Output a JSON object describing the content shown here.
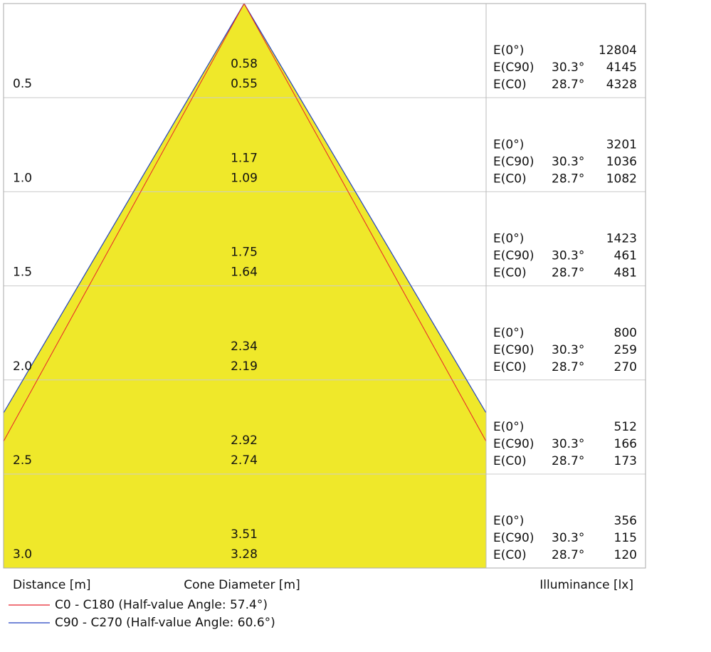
{
  "rows": [
    {
      "distance": "0.5",
      "diameters": [
        "0.58",
        "0.55"
      ],
      "illuminance": [
        {
          "label": "E(0°)",
          "value": "12804"
        },
        {
          "label": "E(C90)",
          "angle": "30.3°",
          "value": "4145"
        },
        {
          "label": "E(C0)",
          "angle": "28.7°",
          "value": "4328"
        }
      ]
    },
    {
      "distance": "1.0",
      "diameters": [
        "1.17",
        "1.09"
      ],
      "illuminance": [
        {
          "label": "E(0°)",
          "value": "3201"
        },
        {
          "label": "E(C90)",
          "angle": "30.3°",
          "value": "1036"
        },
        {
          "label": "E(C0)",
          "angle": "28.7°",
          "value": "1082"
        }
      ]
    },
    {
      "distance": "1.5",
      "diameters": [
        "1.75",
        "1.64"
      ],
      "illuminance": [
        {
          "label": "E(0°)",
          "value": "1423"
        },
        {
          "label": "E(C90)",
          "angle": "30.3°",
          "value": "461"
        },
        {
          "label": "E(C0)",
          "angle": "28.7°",
          "value": "481"
        }
      ]
    },
    {
      "distance": "2.0",
      "diameters": [
        "2.34",
        "2.19"
      ],
      "illuminance": [
        {
          "label": "E(0°)",
          "value": "800"
        },
        {
          "label": "E(C90)",
          "angle": "30.3°",
          "value": "259"
        },
        {
          "label": "E(C0)",
          "angle": "28.7°",
          "value": "270"
        }
      ]
    },
    {
      "distance": "2.5",
      "diameters": [
        "2.92",
        "2.74"
      ],
      "illuminance": [
        {
          "label": "E(0°)",
          "value": "512"
        },
        {
          "label": "E(C90)",
          "angle": "30.3°",
          "value": "166"
        },
        {
          "label": "E(C0)",
          "angle": "28.7°",
          "value": "173"
        }
      ]
    },
    {
      "distance": "3.0",
      "diameters": [
        "3.51",
        "3.28"
      ],
      "illuminance": [
        {
          "label": "E(0°)",
          "value": "356"
        },
        {
          "label": "E(C90)",
          "angle": "30.3°",
          "value": "115"
        },
        {
          "label": "E(C0)",
          "angle": "28.7°",
          "value": "120"
        }
      ]
    }
  ],
  "footer": {
    "distance": "Distance [m]",
    "diameter": "Cone Diameter [m]",
    "illuminance": "Illuminance [lx]"
  },
  "legend": [
    {
      "name": "C0 - C180 (Half-value Angle: 57.4°)",
      "color": "#e8202a"
    },
    {
      "name": "C90 - C270 (Half-value Angle: 60.6°)",
      "color": "#2040c0"
    }
  ]
}
